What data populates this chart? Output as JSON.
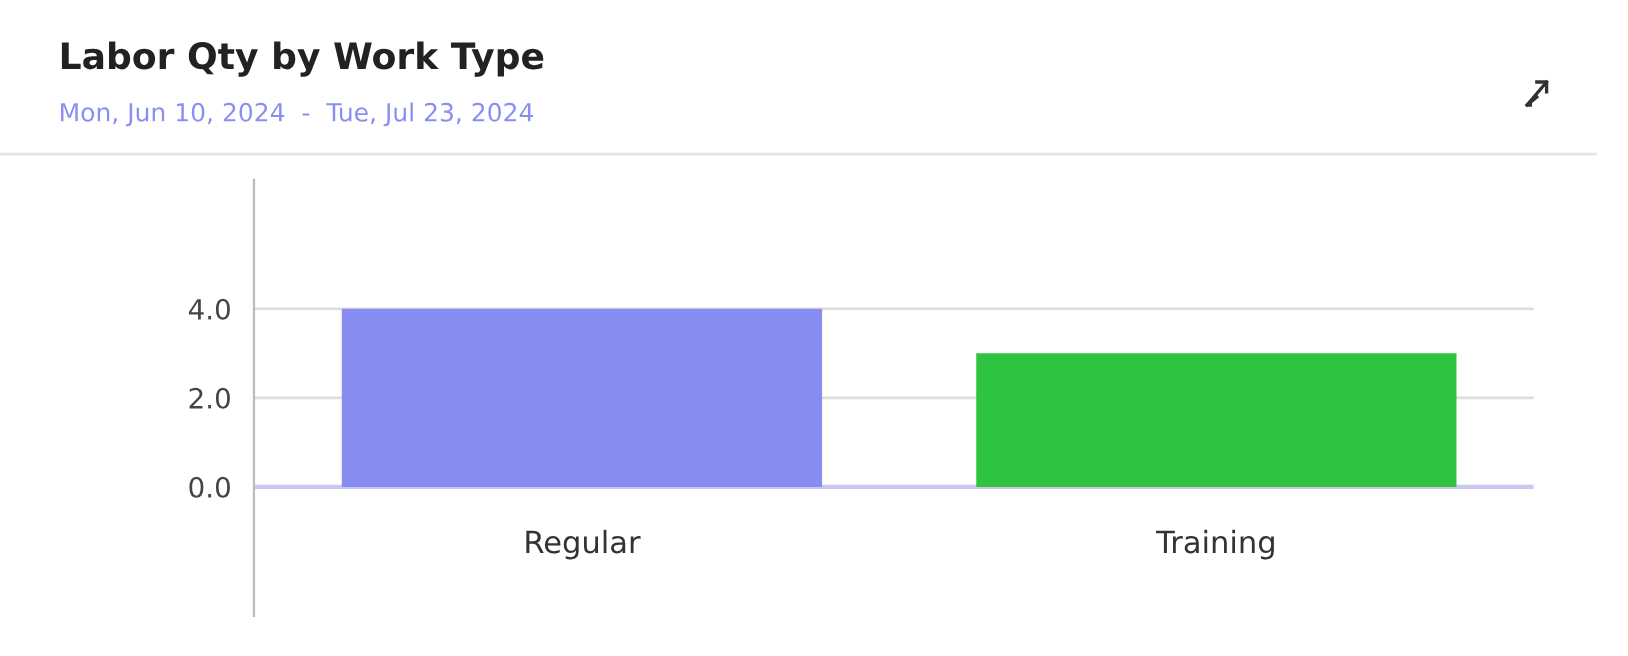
{
  "chart_data": {
    "type": "bar",
    "title": "Labor Qty by Work Type",
    "subtitle": "Mon, Jun 10, 2024  -  Tue, Jul 23, 2024",
    "categories": [
      "Regular",
      "Training"
    ],
    "values": [
      4.0,
      3.0
    ],
    "colors": [
      "#868cf0",
      "#2ec440"
    ],
    "ylim": [
      -2.9,
      6.9
    ],
    "yticks": [
      {
        "value": 0,
        "label": "0.0"
      },
      {
        "value": 2,
        "label": "2.0"
      },
      {
        "value": 4,
        "label": "4.0"
      }
    ],
    "grid": "y",
    "legend": false
  }
}
